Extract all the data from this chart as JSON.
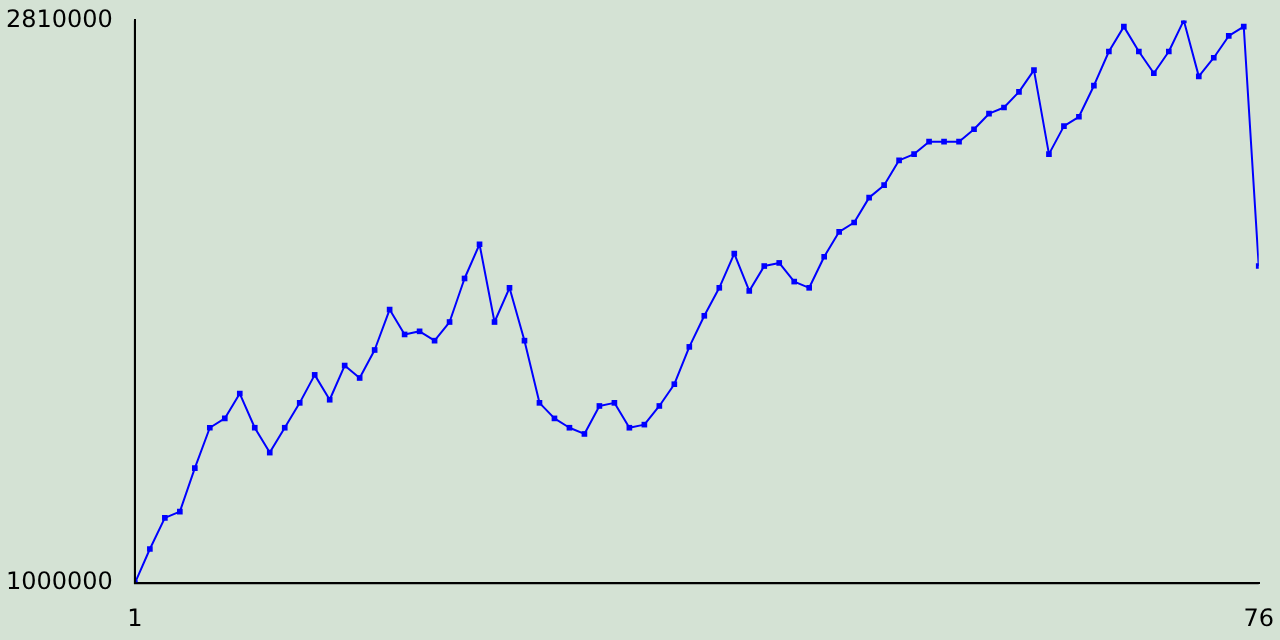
{
  "chart_data": {
    "type": "line",
    "x": [
      1,
      2,
      3,
      4,
      5,
      6,
      7,
      8,
      9,
      10,
      11,
      12,
      13,
      14,
      15,
      16,
      17,
      18,
      19,
      20,
      21,
      22,
      23,
      24,
      25,
      26,
      27,
      28,
      29,
      30,
      31,
      32,
      33,
      34,
      35,
      36,
      37,
      38,
      39,
      40,
      41,
      42,
      43,
      44,
      45,
      46,
      47,
      48,
      49,
      50,
      51,
      52,
      53,
      54,
      55,
      56,
      57,
      58,
      59,
      60,
      61,
      62,
      63,
      64,
      65,
      66,
      67,
      68,
      69,
      70,
      71,
      72,
      73,
      74,
      75,
      76
    ],
    "series": [
      {
        "color": "#0000ff",
        "values": [
          1000000,
          1110000,
          1210000,
          1230000,
          1370000,
          1500000,
          1530000,
          1610000,
          1500000,
          1420000,
          1500000,
          1580000,
          1670000,
          1590000,
          1700000,
          1660000,
          1750000,
          1880000,
          1800000,
          1810000,
          1780000,
          1840000,
          1980000,
          2090000,
          1840000,
          1950000,
          1780000,
          1580000,
          1530000,
          1500000,
          1480000,
          1570000,
          1580000,
          1500000,
          1510000,
          1570000,
          1640000,
          1760000,
          1860000,
          1950000,
          2060000,
          1940000,
          2020000,
          2030000,
          1970000,
          1950000,
          2050000,
          2130000,
          2160000,
          2240000,
          2280000,
          2360000,
          2380000,
          2420000,
          2420000,
          2420000,
          2460000,
          2510000,
          2530000,
          2580000,
          2650000,
          2380000,
          2470000,
          2500000,
          2600000,
          2710000,
          2790000,
          2710000,
          2640000,
          2710000,
          2810000,
          2630000,
          2690000,
          2760000,
          2790000,
          2020000
        ]
      }
    ],
    "xlim": [
      1,
      76
    ],
    "xticks": [
      1,
      76
    ],
    "ylim": [
      1000000,
      2810000
    ],
    "yticks": [
      1000000,
      2810000
    ],
    "marker": "square",
    "line_style": "solid"
  }
}
